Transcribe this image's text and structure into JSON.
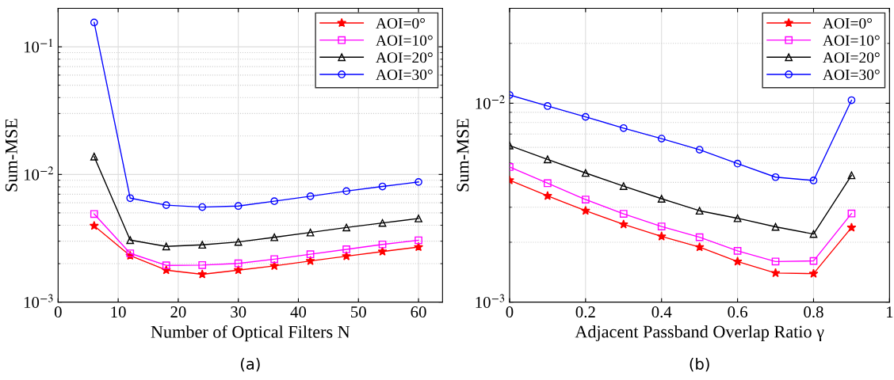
{
  "chart_data": [
    {
      "type": "line",
      "xlabel": "Number of Optical Filters N",
      "ylabel": "Sum-MSE",
      "annotations": [
        "(a)"
      ],
      "x": [
        6,
        12,
        18,
        24,
        30,
        36,
        42,
        48,
        54,
        60
      ],
      "log": "y",
      "xlim": [
        0,
        64
      ],
      "xticks": [
        0,
        10,
        20,
        30,
        40,
        50,
        60
      ],
      "ylim": [
        0.001,
        0.2
      ],
      "yticks": [
        {
          "value": 0.001,
          "label": "10$^{−3}$"
        },
        {
          "value": 0.01,
          "label": "10$^{−2}$"
        },
        {
          "value": 0.1,
          "label": "10$^{−1}$"
        }
      ],
      "grid": true,
      "legend": "top right",
      "series": [
        {
          "name": "AOI=0°",
          "color": "#ff0000",
          "marker": "star",
          "values": [
            0.00396,
            0.00231,
            0.00178,
            0.00165,
            0.00178,
            0.00192,
            0.0021,
            0.00229,
            0.00249,
            0.0027
          ]
        },
        {
          "name": "AOI=10°",
          "color": "#ff00ff",
          "marker": "square",
          "values": [
            0.0049,
            0.00241,
            0.00194,
            0.00195,
            0.00201,
            0.00217,
            0.00237,
            0.00259,
            0.00283,
            0.00305
          ]
        },
        {
          "name": "AOI=20°",
          "color": "#000000",
          "marker": "triangle",
          "values": [
            0.0138,
            0.00306,
            0.00273,
            0.00281,
            0.00296,
            0.00322,
            0.00351,
            0.00384,
            0.00417,
            0.00452
          ]
        },
        {
          "name": "AOI=30°",
          "color": "#0000ff",
          "marker": "circle",
          "values": [
            0.155,
            0.00652,
            0.00575,
            0.00555,
            0.00566,
            0.00617,
            0.00675,
            0.0074,
            0.00805,
            0.00873
          ]
        }
      ]
    },
    {
      "type": "line",
      "xlabel": "Adjacent Passband Overlap Ratio γ",
      "ylabel": "Sum-MSE",
      "annotations": [
        "(b)"
      ],
      "x": [
        0,
        0.1,
        0.2,
        0.3,
        0.4,
        0.5,
        0.6,
        0.7,
        0.8,
        0.9
      ],
      "log": "y",
      "xlim": [
        0,
        1
      ],
      "xticks": [
        0,
        0.2,
        0.4,
        0.6,
        0.8,
        1
      ],
      "ylim": [
        0.001,
        0.03
      ],
      "yticks": [
        {
          "value": 0.001,
          "label": "10$^{−3}$"
        },
        {
          "value": 0.01,
          "label": "10$^{−2}$"
        }
      ],
      "grid": true,
      "legend": "top right",
      "series": [
        {
          "name": "AOI=0°",
          "color": "#ff0000",
          "marker": "star",
          "values": [
            0.0041,
            0.00342,
            0.00288,
            0.00246,
            0.00214,
            0.00189,
            0.0016,
            0.0014,
            0.00139,
            0.00237
          ]
        },
        {
          "name": "AOI=10°",
          "color": "#ff00ff",
          "marker": "square",
          "values": [
            0.00478,
            0.00396,
            0.00328,
            0.00278,
            0.0024,
            0.00212,
            0.00181,
            0.0016,
            0.00161,
            0.00279
          ]
        },
        {
          "name": "AOI=20°",
          "color": "#000000",
          "marker": "triangle",
          "values": [
            0.00613,
            0.00522,
            0.00446,
            0.00383,
            0.00331,
            0.00288,
            0.00264,
            0.00239,
            0.0022,
            0.00434
          ]
        },
        {
          "name": "AOI=30°",
          "color": "#0000ff",
          "marker": "circle",
          "values": [
            0.011,
            0.00968,
            0.00854,
            0.0075,
            0.00664,
            0.00584,
            0.00497,
            0.00425,
            0.00409,
            0.01036
          ]
        }
      ]
    }
  ]
}
